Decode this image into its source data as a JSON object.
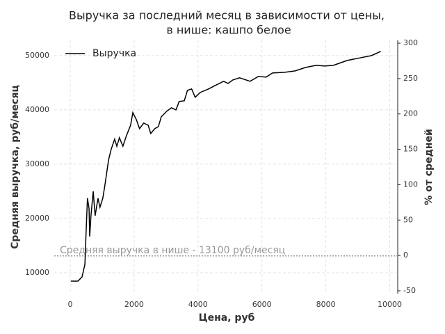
{
  "chart_data": {
    "type": "line",
    "title": [
      "Выручка за последний месяц в зависимости от цены,",
      "в нише: кашпо белое"
    ],
    "x_label": "Цена, руб",
    "y_label": "Средняя выручка, руб/месяц",
    "y2_label": "% от средней",
    "xlim": [
      -500,
      10250
    ],
    "ylim": [
      6150,
      52800
    ],
    "y2lim": [
      -54,
      304
    ],
    "xticks": [
      0,
      2000,
      4000,
      6000,
      8000,
      10000
    ],
    "yticks": [
      10000,
      20000,
      30000,
      40000,
      50000
    ],
    "y2ticks": [
      -50,
      0,
      50,
      100,
      150,
      200,
      250,
      300
    ],
    "grid": true,
    "legend": "upper left",
    "hline": {
      "value": 13100,
      "color": "#999999",
      "label": "Средняя выручка в нише - 13100 руб/месяц"
    },
    "x": [
      20,
      240,
      370,
      460,
      500,
      540,
      590,
      610,
      650,
      720,
      780,
      870,
      930,
      1020,
      1090,
      1200,
      1280,
      1390,
      1460,
      1540,
      1650,
      1760,
      1890,
      1960,
      2070,
      2170,
      2300,
      2440,
      2520,
      2650,
      2760,
      2850,
      3020,
      3170,
      3310,
      3410,
      3570,
      3670,
      3800,
      3910,
      4070,
      4330,
      4540,
      4800,
      4940,
      5090,
      5300,
      5630,
      5890,
      6130,
      6330,
      6720,
      7040,
      7370,
      7700,
      7960,
      8240,
      8670,
      9110,
      9430,
      9720
    ],
    "series": [
      {
        "name": "Выручка",
        "color": "#000000",
        "values": [
          8460,
          8460,
          9230,
          11540,
          17950,
          23720,
          21800,
          16670,
          20500,
          25000,
          20500,
          23720,
          22050,
          23720,
          26280,
          30770,
          32690,
          34600,
          33300,
          34870,
          33300,
          35250,
          37180,
          39490,
          38200,
          36540,
          37560,
          37180,
          35640,
          36540,
          36920,
          38720,
          39740,
          40380,
          40000,
          41540,
          41670,
          43590,
          43850,
          42310,
          43210,
          43850,
          44490,
          45260,
          44870,
          45510,
          45900,
          45260,
          46150,
          46030,
          46790,
          46920,
          47180,
          47820,
          48200,
          48080,
          48200,
          49100,
          49620,
          50000,
          50770
        ]
      }
    ]
  }
}
